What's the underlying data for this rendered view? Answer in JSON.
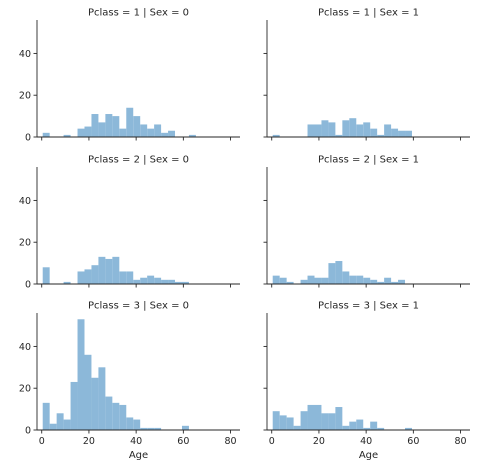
{
  "chart_data": {
    "type": "bar",
    "kind": "faceted-histogram",
    "bar_color": "#8cb8d9",
    "xlabel": "Age",
    "xlim": [
      -2,
      84
    ],
    "ylim": [
      0,
      56
    ],
    "xticks": [
      0,
      20,
      40,
      60,
      80
    ],
    "yticks": [
      0,
      20,
      40
    ],
    "bin_edges": [
      0.42,
      3.37,
      6.32,
      9.27,
      12.22,
      15.17,
      18.12,
      21.07,
      24.02,
      26.97,
      29.92,
      32.87,
      35.82,
      38.77,
      41.72,
      44.67,
      47.62,
      50.57,
      53.52,
      56.47,
      59.42,
      62.37,
      65.32,
      68.27,
      71.22,
      74.17,
      77.12,
      80.07
    ],
    "facets": [
      {
        "title": "Pclass = 1 | Sex = 0",
        "row": 0,
        "col": 0,
        "counts": [
          2,
          0,
          0,
          1,
          0,
          4,
          5,
          11,
          7,
          11,
          10,
          4,
          14,
          10,
          6,
          4,
          6,
          2,
          3,
          0,
          0,
          1,
          0,
          0,
          0,
          0,
          0
        ]
      },
      {
        "title": "Pclass = 1 | Sex = 1",
        "row": 0,
        "col": 1,
        "counts": [
          1,
          0,
          0,
          0,
          0,
          6,
          6,
          8,
          7,
          1,
          8,
          9,
          6,
          7,
          4,
          1,
          6,
          4,
          3,
          3,
          0,
          0,
          0,
          0,
          0,
          0,
          0
        ]
      },
      {
        "title": "Pclass = 2 | Sex = 0",
        "row": 1,
        "col": 0,
        "counts": [
          8,
          0,
          0,
          1,
          0,
          6,
          7,
          9,
          13,
          12,
          13,
          6,
          6,
          2,
          3,
          4,
          3,
          2,
          2,
          1,
          1,
          0,
          0,
          0,
          0,
          0,
          0
        ]
      },
      {
        "title": "Pclass = 2 | Sex = 1",
        "row": 1,
        "col": 1,
        "counts": [
          4,
          3,
          1,
          0,
          2,
          4,
          3,
          3,
          10,
          11,
          6,
          4,
          4,
          3,
          2,
          1,
          3,
          1,
          2,
          0,
          0,
          0,
          0,
          0,
          0,
          0,
          0
        ]
      },
      {
        "title": "Pclass = 3 | Sex = 0",
        "row": 2,
        "col": 0,
        "counts": [
          13,
          3,
          8,
          5,
          23,
          53,
          36,
          25,
          30,
          16,
          13,
          12,
          6,
          5,
          1,
          1,
          1,
          0,
          0,
          0,
          2,
          0,
          0,
          0,
          0,
          0,
          0
        ]
      },
      {
        "title": "Pclass = 3 | Sex = 1",
        "row": 2,
        "col": 1,
        "counts": [
          9,
          7,
          6,
          2,
          9,
          12,
          12,
          8,
          8,
          11,
          2,
          4,
          5,
          1,
          4,
          1,
          0,
          0,
          0,
          1,
          0,
          0,
          0,
          0,
          0,
          0,
          0
        ]
      }
    ]
  }
}
